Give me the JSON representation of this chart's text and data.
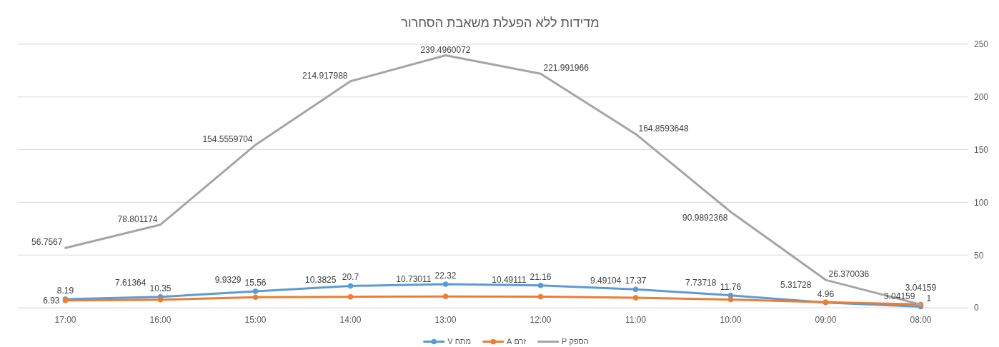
{
  "chart_data": {
    "type": "line",
    "title": "מדידות ללא הפעלת משאבת הסחרור",
    "categories": [
      "17:00",
      "16:00",
      "15:00",
      "14:00",
      "13:00",
      "12:00",
      "11:00",
      "10:00",
      "09:00",
      "08:00"
    ],
    "series": [
      {
        "name": "מתח V",
        "color": "#5b9bd5",
        "marker": "circle",
        "values": [
          8.19,
          10.35,
          15.56,
          20.7,
          22.32,
          21.16,
          17.37,
          11.76,
          4.96,
          1
        ]
      },
      {
        "name": "זרם A",
        "color": "#ed7d31",
        "marker": "circle",
        "values": [
          6.93,
          7.61364,
          9.9329,
          10.3825,
          10.73011,
          10.49111,
          9.49104,
          7.73718,
          5.31728,
          3.04159
        ]
      },
      {
        "name": "הספק P",
        "color": "#a5a5a5",
        "marker": "none",
        "values": [
          56.7567,
          78.801174,
          154.5559704,
          214.917988,
          239.4960072,
          221.991966,
          164.8593648,
          90.9892368,
          26.370036,
          3.04159
        ]
      }
    ],
    "ylim": [
      0,
      250
    ],
    "yticks": [
      0,
      50,
      100,
      150,
      200,
      250
    ],
    "grid": "y",
    "legend": "bottom",
    "data_labels": true
  }
}
